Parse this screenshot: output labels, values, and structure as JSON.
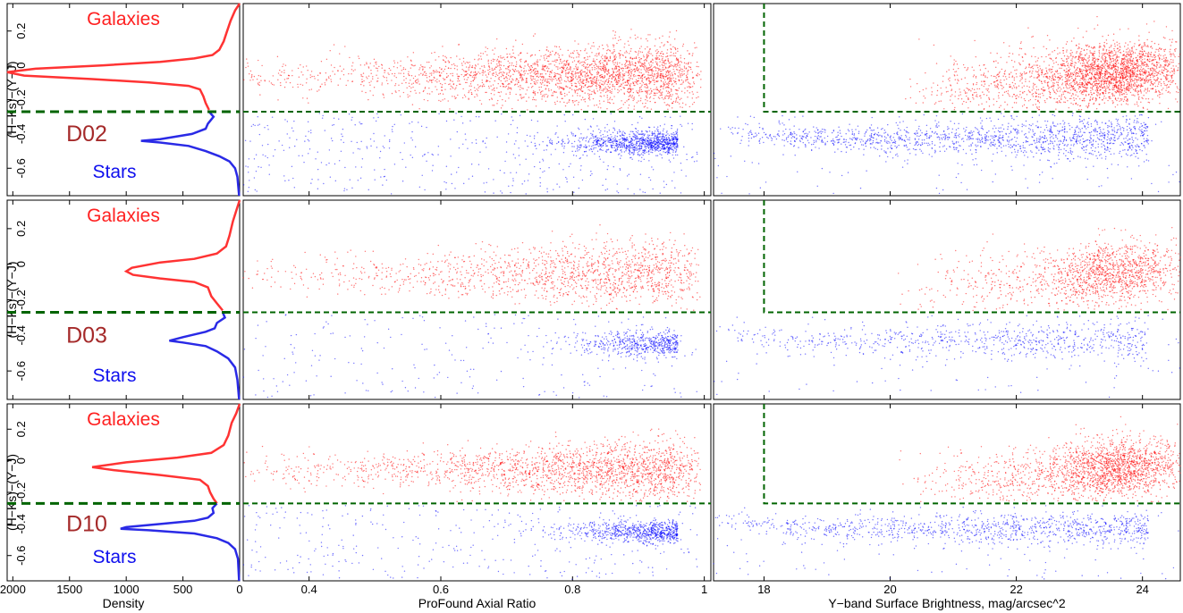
{
  "colors": {
    "galaxies": "#ff0000",
    "stars": "#0000ff",
    "density_galaxies": "#ff3333",
    "density_stars": "#2a2ae6",
    "cut_line": "#006400",
    "field_label": "#a52a2a"
  },
  "chart_data": [
    {
      "id": "density",
      "type": "line",
      "xlabel": "Density",
      "ylabel": "(H−Ks)−(Y−J)",
      "xlim": [
        2050,
        0
      ],
      "ylim": [
        -0.76,
        0.36
      ],
      "xticks": [
        "2000",
        "1500",
        "1000",
        "500",
        "0"
      ],
      "xtick_values": [
        2000,
        1500,
        1000,
        500,
        0
      ],
      "yticks": [
        "-0.6",
        "-0.4",
        "-0.2",
        "0",
        "0.2"
      ],
      "ytick_values": [
        -0.6,
        -0.4,
        -0.2,
        0,
        0.2
      ],
      "cut_y": -0.27,
      "panels": [
        {
          "field": "D02",
          "labels": {
            "galaxies": "Galaxies",
            "stars": "Stars"
          },
          "galaxy_curve": [
            [
              0,
              0.36
            ],
            [
              40,
              0.32
            ],
            [
              80,
              0.26
            ],
            [
              110,
              0.2
            ],
            [
              140,
              0.14
            ],
            [
              180,
              0.09
            ],
            [
              240,
              0.06
            ],
            [
              400,
              0.04
            ],
            [
              700,
              0.02
            ],
            [
              1200,
              0.0
            ],
            [
              1800,
              -0.02
            ],
            [
              2050,
              -0.04
            ],
            [
              1900,
              -0.06
            ],
            [
              1300,
              -0.08
            ],
            [
              800,
              -0.1
            ],
            [
              450,
              -0.12
            ],
            [
              350,
              -0.14
            ],
            [
              320,
              -0.18
            ],
            [
              300,
              -0.22
            ],
            [
              270,
              -0.26
            ]
          ],
          "star_curve": [
            [
              270,
              -0.27
            ],
            [
              230,
              -0.3
            ],
            [
              280,
              -0.34
            ],
            [
              300,
              -0.37
            ],
            [
              420,
              -0.4
            ],
            [
              700,
              -0.43
            ],
            [
              870,
              -0.44
            ],
            [
              700,
              -0.45
            ],
            [
              450,
              -0.47
            ],
            [
              300,
              -0.5
            ],
            [
              180,
              -0.53
            ],
            [
              90,
              -0.56
            ],
            [
              40,
              -0.6
            ],
            [
              20,
              -0.65
            ],
            [
              5,
              -0.76
            ]
          ]
        },
        {
          "field": "D03",
          "labels": {
            "galaxies": "Galaxies",
            "stars": "Stars"
          },
          "galaxy_curve": [
            [
              0,
              0.36
            ],
            [
              30,
              0.3
            ],
            [
              60,
              0.24
            ],
            [
              90,
              0.16
            ],
            [
              120,
              0.1
            ],
            [
              200,
              0.06
            ],
            [
              400,
              0.03
            ],
            [
              700,
              0.01
            ],
            [
              950,
              -0.02
            ],
            [
              1000,
              -0.04
            ],
            [
              940,
              -0.06
            ],
            [
              700,
              -0.08
            ],
            [
              400,
              -0.1
            ],
            [
              280,
              -0.13
            ],
            [
              250,
              -0.18
            ],
            [
              200,
              -0.22
            ],
            [
              150,
              -0.26
            ]
          ],
          "star_curve": [
            [
              150,
              -0.27
            ],
            [
              130,
              -0.3
            ],
            [
              200,
              -0.33
            ],
            [
              220,
              -0.36
            ],
            [
              300,
              -0.38
            ],
            [
              500,
              -0.41
            ],
            [
              620,
              -0.43
            ],
            [
              500,
              -0.44
            ],
            [
              300,
              -0.46
            ],
            [
              200,
              -0.49
            ],
            [
              100,
              -0.53
            ],
            [
              40,
              -0.58
            ],
            [
              20,
              -0.65
            ],
            [
              5,
              -0.76
            ]
          ]
        },
        {
          "field": "D10",
          "labels": {
            "galaxies": "Galaxies",
            "stars": "Stars"
          },
          "galaxy_curve": [
            [
              0,
              0.36
            ],
            [
              30,
              0.3
            ],
            [
              70,
              0.24
            ],
            [
              100,
              0.16
            ],
            [
              140,
              0.1
            ],
            [
              250,
              0.05
            ],
            [
              550,
              0.02
            ],
            [
              1000,
              -0.01
            ],
            [
              1300,
              -0.04
            ],
            [
              1100,
              -0.06
            ],
            [
              700,
              -0.09
            ],
            [
              350,
              -0.12
            ],
            [
              280,
              -0.16
            ],
            [
              260,
              -0.2
            ],
            [
              230,
              -0.24
            ],
            [
              200,
              -0.27
            ]
          ],
          "star_curve": [
            [
              200,
              -0.27
            ],
            [
              240,
              -0.3
            ],
            [
              230,
              -0.33
            ],
            [
              280,
              -0.36
            ],
            [
              400,
              -0.38
            ],
            [
              700,
              -0.4
            ],
            [
              1000,
              -0.42
            ],
            [
              1050,
              -0.43
            ],
            [
              800,
              -0.44
            ],
            [
              400,
              -0.46
            ],
            [
              200,
              -0.49
            ],
            [
              100,
              -0.52
            ],
            [
              40,
              -0.56
            ],
            [
              15,
              -0.62
            ],
            [
              5,
              -0.76
            ]
          ]
        }
      ]
    },
    {
      "id": "axial_ratio",
      "type": "scatter",
      "xlabel": "ProFound Axial Ratio",
      "xlim": [
        0.3,
        1.01
      ],
      "ylim": [
        -0.76,
        0.36
      ],
      "xticks": [
        "0.4",
        "0.6",
        "0.8",
        "1"
      ],
      "xtick_values": [
        0.4,
        0.6,
        0.8,
        1.0
      ],
      "cut_y": -0.27,
      "series": [
        {
          "name": "Galaxies",
          "y_center": -0.06,
          "y_spread": 0.09,
          "x_mode": 0.92
        },
        {
          "name": "Stars",
          "y_center": -0.45,
          "y_spread": 0.035,
          "x_mode": 0.95
        }
      ]
    },
    {
      "id": "surface_brightness",
      "type": "scatter",
      "xlabel": "Y−band Surface Brightness, mag/arcsec^2",
      "xlim": [
        17.2,
        24.6
      ],
      "ylim": [
        -0.76,
        0.36
      ],
      "xticks": [
        "18",
        "20",
        "22",
        "24"
      ],
      "xtick_values": [
        18,
        20,
        22,
        24
      ],
      "cut_y": -0.27,
      "cut_x": 18.0,
      "series": [
        {
          "name": "Galaxies",
          "y_center": -0.05,
          "y_spread": 0.09,
          "x_center": 23.5
        },
        {
          "name": "Stars",
          "y_center": -0.43,
          "y_spread": 0.04,
          "x_range": [
            17.2,
            24.0
          ]
        }
      ]
    }
  ]
}
